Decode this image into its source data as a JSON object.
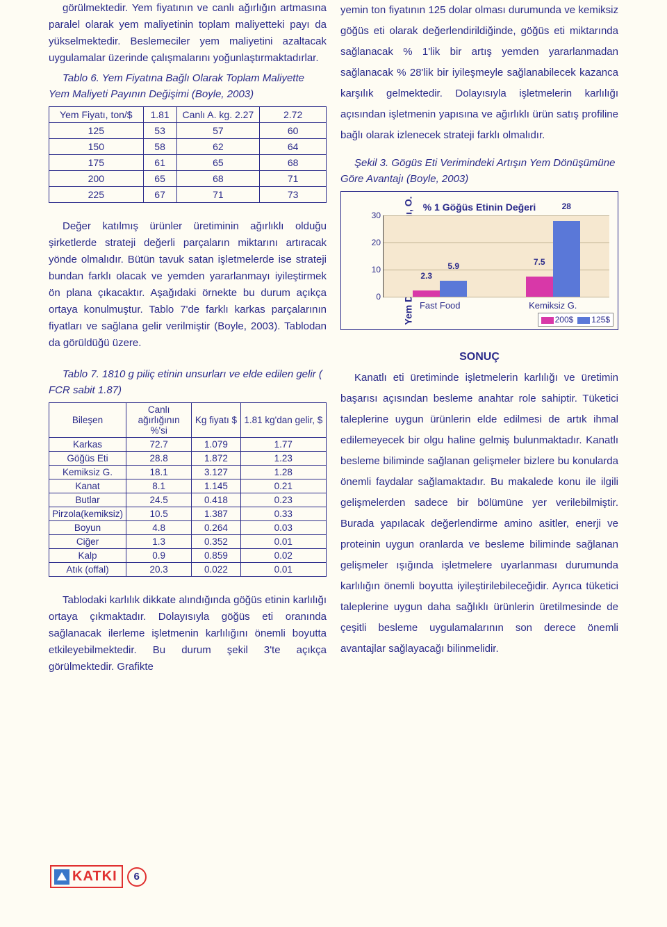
{
  "paragraphs": {
    "p1": "görülmektedir. Yem fiyatının ve canlı ağırlığın artmasına paralel olarak yem maliyetinin toplam maliyetteki payı da yükselmektedir. Beslemeciler yem maliyetini azaltacak uygulamalar üzerinde çalışmalarını yoğunlaştırmaktadırlar.",
    "p2": "Değer katılmış ürünler üretiminin ağırlıklı olduğu şirketlerde strateji değerli parçaların miktarını artıracak yönde olmalıdır. Bütün tavuk satan işletmelerde ise strateji bundan farklı olacak ve yemden yararlanmayı iyileştirmek ön plana çıkacaktır. Aşağıdaki örnekte bu durum açıkça ortaya konulmuştur. Tablo 7'de farklı karkas parçalarının fiyatları ve sağlana gelir verilmiştir (Boyle, 2003). Tablodan da görüldüğü üzere.",
    "p3": "Tablodaki karlılık dikkate alındığında göğüs etinin karlılığı ortaya çıkmaktadır. Dolayısıyla göğüs eti oranında sağlanacak ilerleme işletmenin karlılığını önemli boyutta etkileyebilmektedir. Bu durum şekil 3'te açıkça görülmektedir. Grafikte",
    "p4": "yemin ton fiyatının 125 dolar olması durumunda ve kemiksiz göğüs eti olarak değerlendirildiğinde, göğüs eti miktarında sağlanacak % 1'lik bir artış yemden yararlanmadan sağlanacak % 28'lik bir iyileşmeyle sağlanabilecek kazanca karşılık gelmektedir. Dolayısıyla işletmelerin karlılığı açısından işletmenin yapısına ve ağırlıklı ürün satış profiline bağlı olarak izlenecek strateji farklı olmalıdır.",
    "p5": "Kanatlı eti üretiminde işletmelerin karlılığı ve üretimin başarısı açısından besleme anahtar role sahiptir. Tüketici taleplerine uygun ürünlerin elde edilmesi de artık ihmal edilemeyecek bir olgu haline gelmiş bulunmaktadır. Kanatlı besleme biliminde sağlanan gelişmeler bizlere bu konularda önemli faydalar sağlamaktadır. Bu makalede konu ile ilgili gelişmelerden sadece bir bölümüne yer verilebilmiştir. Burada yapılacak değerlendirme amino asitler, enerji ve proteinin uygun oranlarda ve besleme biliminde sağlanan gelişmeler ışığında işletmelere uyarlanması durumunda karlılığın önemli boyutta iyileştirilebileceğidir. Ayrıca tüketici taleplerine uygun daha sağlıklı ürünlerin üretilmesinde de çeşitli besleme uygulamalarının son derece önemli avantajlar sağlayacağı bilinmelidir."
  },
  "table6": {
    "caption": "Tablo 6. Yem Fiyatına Bağlı Olarak Toplam Maliyette Yem Maliyeti Payının Değişimi (Boyle, 2003)",
    "headers": [
      "Yem Fiyatı, ton/$",
      "1.81",
      "Canlı A. kg. 2.27",
      "2.72"
    ],
    "rows": [
      [
        "125",
        "53",
        "57",
        "60"
      ],
      [
        "150",
        "58",
        "62",
        "64"
      ],
      [
        "175",
        "61",
        "65",
        "68"
      ],
      [
        "200",
        "65",
        "68",
        "71"
      ],
      [
        "225",
        "67",
        "71",
        "73"
      ]
    ]
  },
  "table7": {
    "caption": "Tablo 7. 1810 g piliç etinin unsurları ve elde edilen gelir ( FCR sabit 1.87)",
    "headers": [
      "Bileşen",
      "Canlı ağırlığının %'si",
      "Kg fiyatı $",
      "1.81 kg'dan gelir, $"
    ],
    "rows": [
      [
        "Karkas",
        "72.7",
        "1.079",
        "1.77"
      ],
      [
        "Göğüs Eti",
        "28.8",
        "1.872",
        "1.23"
      ],
      [
        "Kemiksiz G.",
        "18.1",
        "3.127",
        "1.28"
      ],
      [
        "Kanat",
        "8.1",
        "1.145",
        "0.21"
      ],
      [
        "Butlar",
        "24.5",
        "0.418",
        "0.23"
      ],
      [
        "Pirzola(kemiksiz)",
        "10.5",
        "1.387",
        "0.33"
      ],
      [
        "Boyun",
        "4.8",
        "0.264",
        "0.03"
      ],
      [
        "Ciğer",
        "1.3",
        "0.352",
        "0.01"
      ],
      [
        "Kalp",
        "0.9",
        "0.859",
        "0.02"
      ],
      [
        "Atık (offal)",
        "20.3",
        "0.022",
        "0.01"
      ]
    ]
  },
  "figure3": {
    "caption": "Şekil 3. Gögüs Eti Verimindeki Artışın Yem Dönüşümüne Göre Avantajı (Boyle, 2003)",
    "title": "% 1 Göğüs Etinin Değeri",
    "ylabel": "Yem Dönüşümü karşılığı, O.",
    "ylim": [
      0,
      30
    ],
    "yticks": [
      "0",
      "10",
      "20",
      "30"
    ],
    "categories": [
      "Fast Food",
      "Kemiksiz G."
    ],
    "series": [
      {
        "name": "200$",
        "color": "#d838a8",
        "values": [
          2.3,
          7.5
        ]
      },
      {
        "name": "125$",
        "color": "#5a78d8",
        "values": [
          5.9,
          28
        ]
      }
    ],
    "plot_bg": "#f6e8d0",
    "grid_color": "#bfb090",
    "value_labels": [
      "2.3",
      "5.9",
      "7.5",
      "28"
    ]
  },
  "sonuc_title": "SONUÇ",
  "footer": {
    "logo_text": "KATKI",
    "page_number": "6"
  },
  "colors": {
    "text": "#2a2a8a",
    "page_bg": "#fefcf3",
    "accent_red": "#e03030",
    "logo_blue": "#3a77c9"
  }
}
